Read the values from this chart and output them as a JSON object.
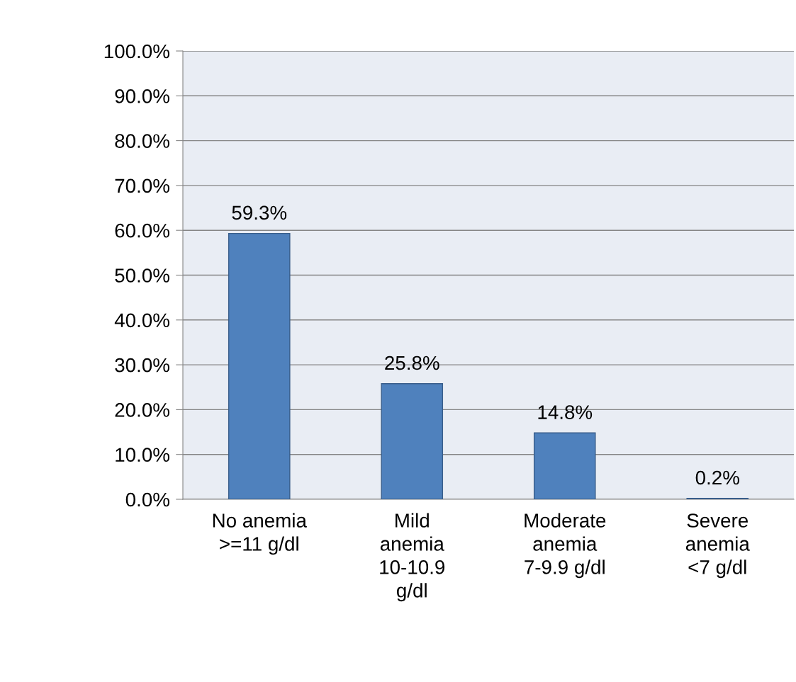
{
  "chart_data": {
    "type": "bar",
    "categories": [
      "No anemia\n>=11 g/dl",
      "Mild\nanemia\n10-10.9\ng/dl",
      "Moderate\nanemia\n7-9.9 g/dl",
      "Severe\nanemia\n<7 g/dl"
    ],
    "values": [
      59.3,
      25.8,
      14.8,
      0.2
    ],
    "value_labels": [
      "59.3%",
      "25.8%",
      "14.8%",
      "0.2%"
    ],
    "color": "#4f81bd",
    "ylim": [
      0,
      100
    ],
    "yticks": [
      {
        "value": 0,
        "label": "0.0%"
      },
      {
        "value": 10,
        "label": "10.0%"
      },
      {
        "value": 20,
        "label": "20.0%"
      },
      {
        "value": 30,
        "label": "30.0%"
      },
      {
        "value": 40,
        "label": "40.0%"
      },
      {
        "value": 50,
        "label": "50.0%"
      },
      {
        "value": 60,
        "label": "60.0%"
      },
      {
        "value": 70,
        "label": "70.0%"
      },
      {
        "value": 80,
        "label": "80.0%"
      },
      {
        "value": 90,
        "label": "90.0%"
      },
      {
        "value": 100,
        "label": "100.0%"
      }
    ],
    "grid": "y"
  }
}
